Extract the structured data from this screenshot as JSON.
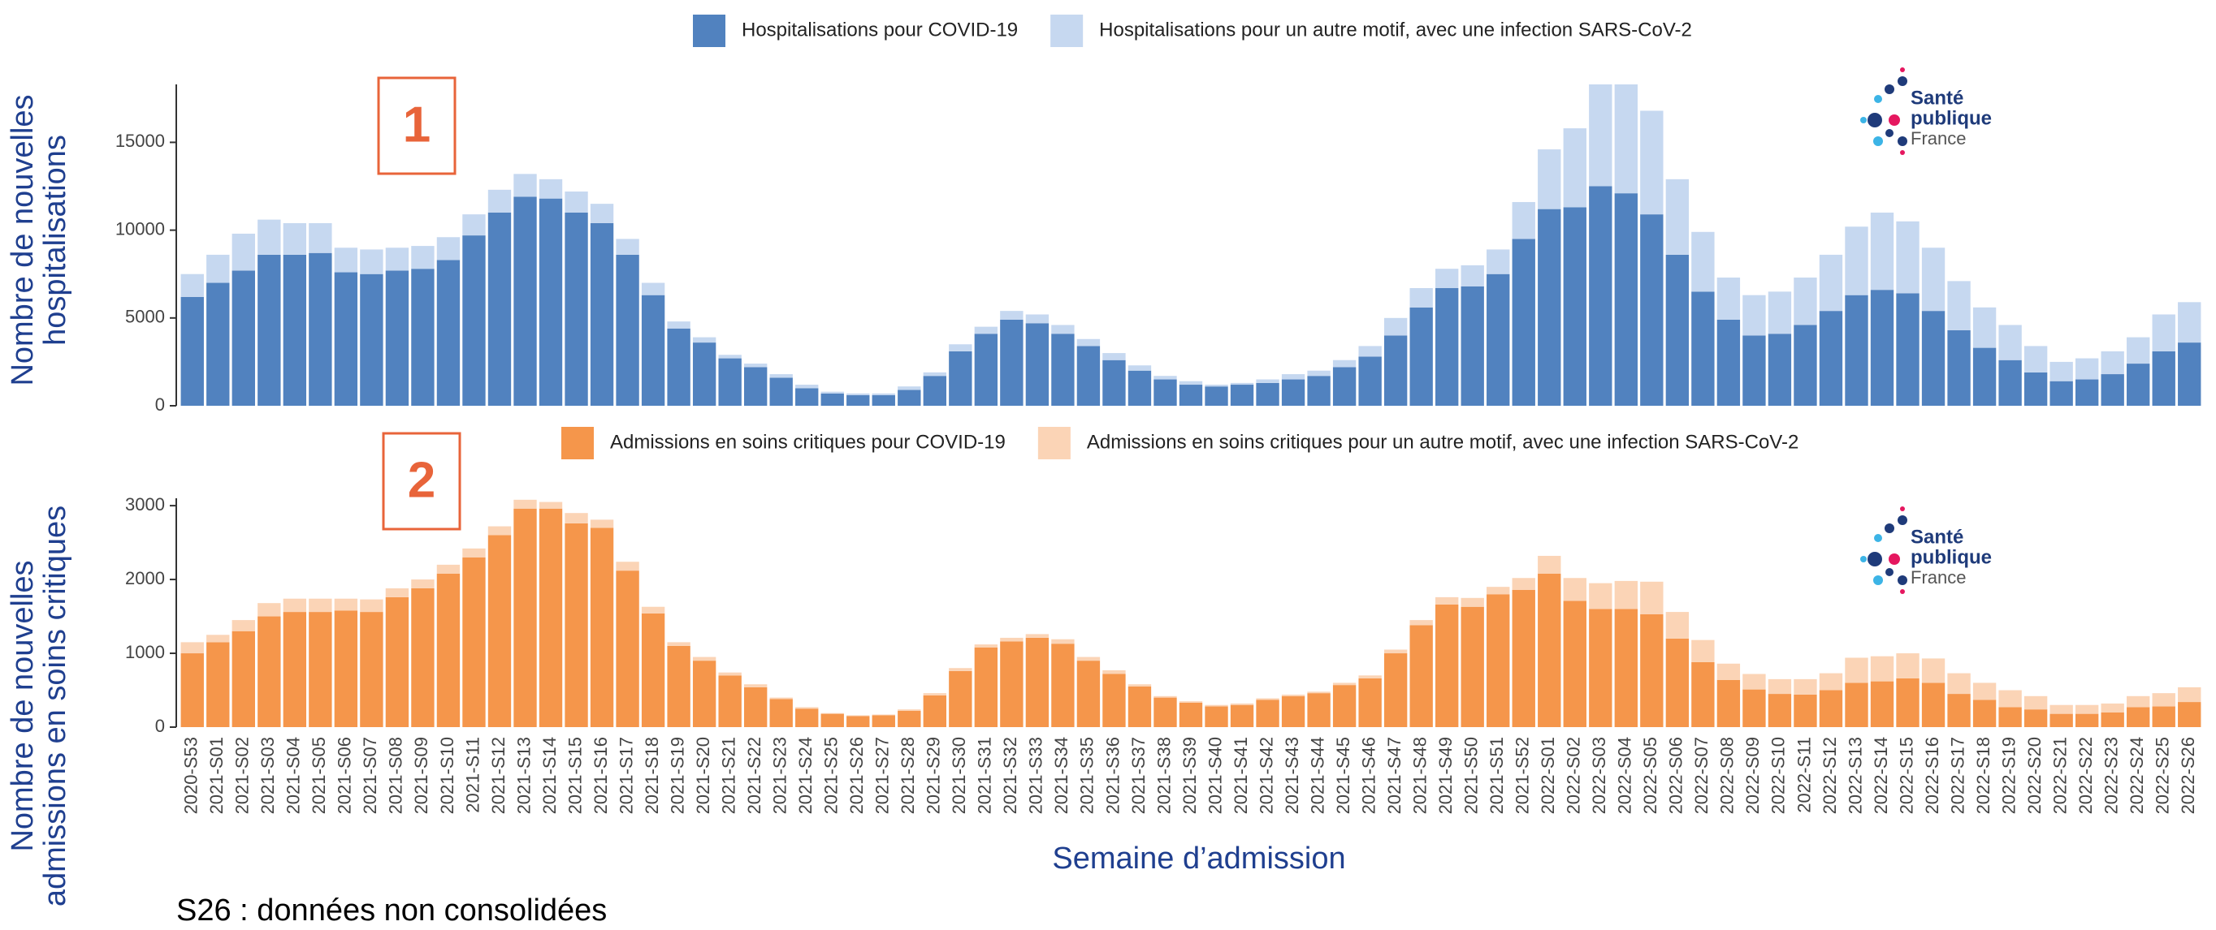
{
  "chart_data": [
    {
      "type": "bar",
      "stacked": true,
      "y_label": [
        "Nombre de nouvelles",
        "hospitalisations"
      ],
      "annotation": "1",
      "logo": [
        "Santé",
        "publique",
        "France"
      ],
      "ylim": [
        0,
        18300
      ],
      "yticks": [
        0,
        5000,
        10000,
        15000
      ],
      "series": [
        {
          "name": "Hospitalisations pour COVID-19",
          "color": "#5182bf",
          "values": [
            6200,
            7000,
            7700,
            8600,
            8600,
            8700,
            7600,
            7500,
            7700,
            7800,
            8300,
            9700,
            11000,
            11900,
            11800,
            11000,
            10400,
            8600,
            6300,
            4400,
            3600,
            2700,
            2200,
            1600,
            1000,
            700,
            600,
            600,
            900,
            1700,
            3100,
            4100,
            4900,
            4700,
            4100,
            3400,
            2600,
            2000,
            1500,
            1200,
            1100,
            1200,
            1300,
            1500,
            1700,
            2200,
            2800,
            4000,
            5600,
            6700,
            6800,
            7500,
            9500,
            11200,
            11300,
            12500,
            12100,
            10900,
            8600,
            6500,
            4900,
            4000,
            4100,
            4600,
            5400,
            6300,
            6600,
            6400,
            5400,
            4300,
            3300,
            2600,
            1900,
            1400,
            1500,
            1800,
            2400,
            3100,
            3600
          ]
        },
        {
          "name": "Hospitalisations pour un autre motif, avec une infection SARS-CoV-2",
          "color": "#c6d8f0",
          "values": [
            1300,
            1600,
            2100,
            2000,
            1800,
            1700,
            1400,
            1400,
            1300,
            1300,
            1300,
            1200,
            1300,
            1300,
            1100,
            1200,
            1100,
            900,
            700,
            400,
            300,
            200,
            200,
            200,
            200,
            100,
            100,
            100,
            200,
            200,
            400,
            400,
            500,
            500,
            500,
            400,
            400,
            300,
            200,
            200,
            100,
            100,
            200,
            300,
            300,
            400,
            600,
            1000,
            1100,
            1100,
            1200,
            1400,
            2100,
            3400,
            4500,
            5800,
            6200,
            5900,
            4300,
            3400,
            2400,
            2300,
            2400,
            2700,
            3200,
            3900,
            4400,
            4100,
            3600,
            2800,
            2300,
            2000,
            1500,
            1100,
            1200,
            1300,
            1500,
            2100,
            2300
          ]
        }
      ]
    },
    {
      "type": "bar",
      "stacked": true,
      "y_label": [
        "Nombre de nouvelles",
        "admissions en soins critiques"
      ],
      "x_label": "Semaine d’admission",
      "annotation": "2",
      "logo": [
        "Santé",
        "publique",
        "France"
      ],
      "categories": [
        "2020-S53",
        "2021-S01",
        "2021-S02",
        "2021-S03",
        "2021-S04",
        "2021-S05",
        "2021-S06",
        "2021-S07",
        "2021-S08",
        "2021-S09",
        "2021-S10",
        "2021-S11",
        "2021-S12",
        "2021-S13",
        "2021-S14",
        "2021-S15",
        "2021-S16",
        "2021-S17",
        "2021-S18",
        "2021-S19",
        "2021-S20",
        "2021-S21",
        "2021-S22",
        "2021-S23",
        "2021-S24",
        "2021-S25",
        "2021-S26",
        "2021-S27",
        "2021-S28",
        "2021-S29",
        "2021-S30",
        "2021-S31",
        "2021-S32",
        "2021-S33",
        "2021-S34",
        "2021-S35",
        "2021-S36",
        "2021-S37",
        "2021-S38",
        "2021-S39",
        "2021-S40",
        "2021-S41",
        "2021-S42",
        "2021-S43",
        "2021-S44",
        "2021-S45",
        "2021-S46",
        "2021-S47",
        "2021-S48",
        "2021-S49",
        "2021-S50",
        "2021-S51",
        "2021-S52",
        "2022-S01",
        "2022-S02",
        "2022-S03",
        "2022-S04",
        "2022-S05",
        "2022-S06",
        "2022-S07",
        "2022-S08",
        "2022-S09",
        "2022-S10",
        "2022-S11",
        "2022-S12",
        "2022-S13",
        "2022-S14",
        "2022-S15",
        "2022-S16",
        "2022-S17",
        "2022-S18",
        "2022-S19",
        "2022-S20",
        "2022-S21",
        "2022-S22",
        "2022-S23",
        "2022-S24",
        "2022-S25",
        "2022-S26"
      ],
      "ylim": [
        0,
        3100
      ],
      "yticks": [
        0,
        1000,
        2000,
        3000
      ],
      "series": [
        {
          "name": "Admissions en soins critiques pour COVID-19",
          "color": "#f5964b",
          "values": [
            1000,
            1150,
            1300,
            1500,
            1560,
            1560,
            1580,
            1560,
            1760,
            1880,
            2080,
            2300,
            2600,
            2960,
            2960,
            2760,
            2700,
            2120,
            1540,
            1100,
            900,
            700,
            540,
            380,
            250,
            180,
            150,
            160,
            220,
            430,
            760,
            1080,
            1160,
            1210,
            1130,
            900,
            720,
            550,
            400,
            330,
            280,
            300,
            370,
            420,
            460,
            570,
            660,
            1000,
            1380,
            1660,
            1630,
            1800,
            1860,
            2080,
            1710,
            1600,
            1600,
            1530,
            1200,
            880,
            640,
            510,
            450,
            440,
            500,
            600,
            620,
            660,
            600,
            450,
            370,
            270,
            240,
            180,
            180,
            200,
            270,
            280,
            340
          ]
        },
        {
          "name": "Admissions en soins critiques pour un autre motif, avec une infection SARS-CoV-2",
          "color": "#fbd4b6",
          "values": [
            150,
            100,
            150,
            180,
            180,
            180,
            160,
            170,
            120,
            120,
            120,
            120,
            120,
            120,
            90,
            140,
            110,
            120,
            90,
            50,
            50,
            40,
            40,
            20,
            20,
            10,
            10,
            10,
            20,
            30,
            40,
            40,
            50,
            50,
            60,
            50,
            50,
            30,
            20,
            20,
            20,
            20,
            20,
            20,
            20,
            30,
            40,
            50,
            70,
            100,
            120,
            100,
            160,
            240,
            310,
            350,
            380,
            440,
            360,
            300,
            220,
            210,
            200,
            210,
            230,
            340,
            340,
            340,
            330,
            280,
            230,
            230,
            180,
            120,
            120,
            120,
            150,
            180,
            200
          ]
        }
      ]
    }
  ],
  "footnote": "S26 : données non consolidées"
}
